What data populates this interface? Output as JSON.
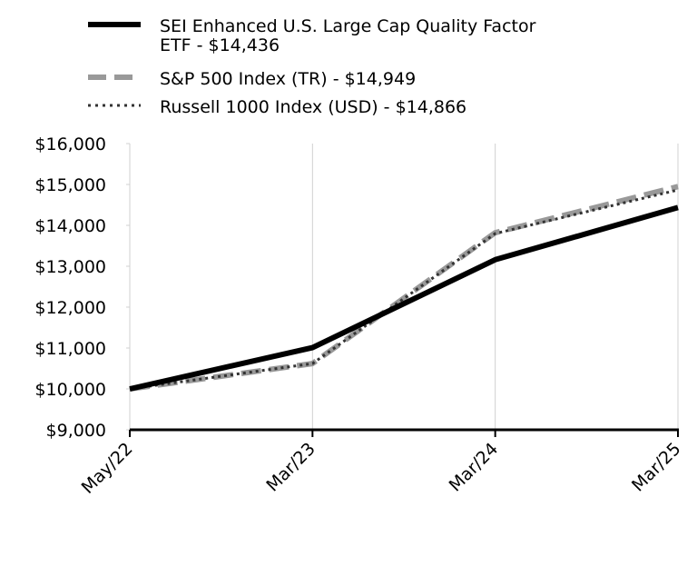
{
  "chart_data": {
    "type": "line",
    "title": "",
    "xlabel": "",
    "ylabel": "",
    "categories": [
      "May/22",
      "Mar/23",
      "Mar/24",
      "Mar/25"
    ],
    "ylim": [
      9000,
      16000
    ],
    "yticks": [
      9000,
      10000,
      11000,
      12000,
      13000,
      14000,
      15000,
      16000
    ],
    "ytick_labels": [
      "$9,000",
      "$10,000",
      "$11,000",
      "$12,000",
      "$13,000",
      "$14,000",
      "$15,000",
      "$16,000"
    ],
    "grid": "vertical",
    "legend_position": "top-left",
    "series": [
      {
        "name": "SEI Enhanced U.S. Large Cap Quality Factor ETF - $14,436",
        "legend_lines": [
          "SEI Enhanced U.S. Large Cap Quality Factor",
          "ETF - $14,436"
        ],
        "values": [
          10000,
          11010,
          13160,
          14436
        ],
        "color": "#000000",
        "style": "solid"
      },
      {
        "name": "S&P 500 Index (TR) - $14,949",
        "legend_lines": [
          "S&P 500 Index (TR) - $14,949"
        ],
        "values": [
          10000,
          10620,
          13820,
          14949
        ],
        "color": "#999999",
        "style": "dashed"
      },
      {
        "name": "Russell 1000 Index (USD) - $14,866",
        "legend_lines": [
          "Russell 1000 Index (USD) - $14,866"
        ],
        "values": [
          10000,
          10620,
          13800,
          14866
        ],
        "color": "#333333",
        "style": "dotted"
      }
    ]
  }
}
